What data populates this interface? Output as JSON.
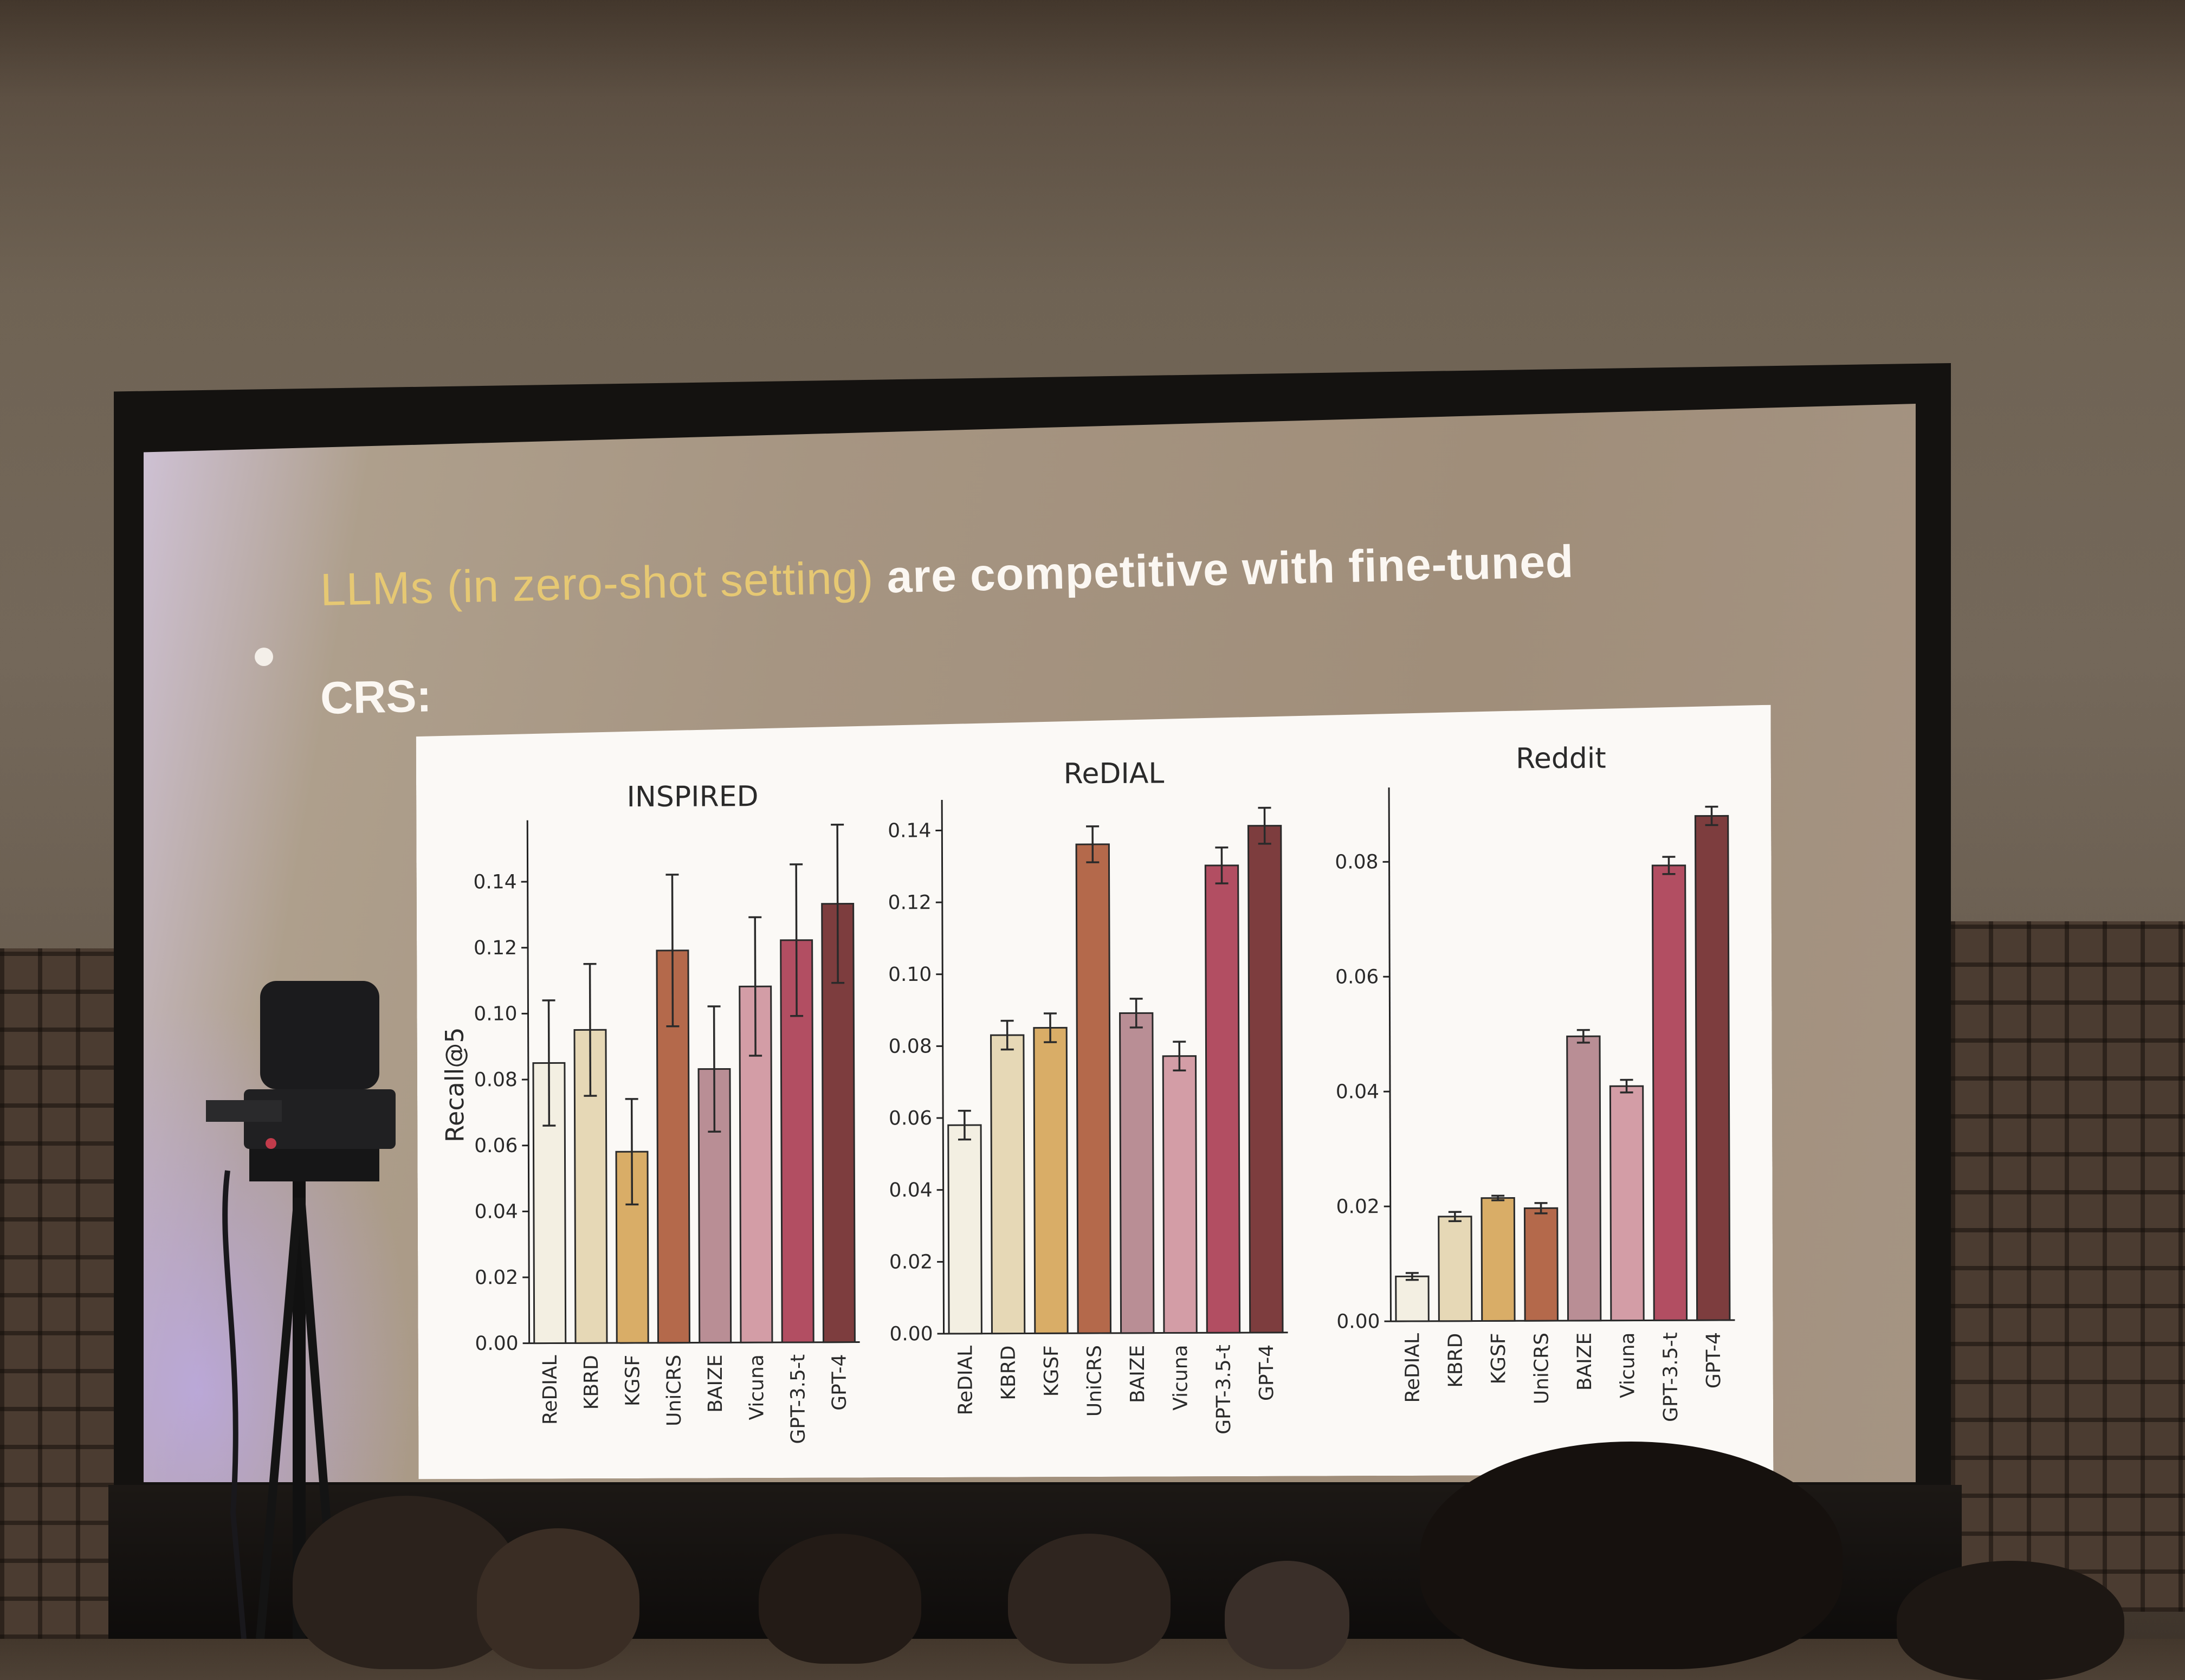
{
  "slide": {
    "bullet_highlight": "LLMs (in zero-shot setting)",
    "bullet_rest": " are competitive with fine-tuned",
    "bullet_line2": "CRS:"
  },
  "chart_data": [
    {
      "type": "bar",
      "title": "INSPIRED",
      "ylabel": "Recall@5",
      "categories": [
        "ReDIAL",
        "KBRD",
        "KGSF",
        "UniCRS",
        "BAIZE",
        "Vicuna",
        "GPT-3.5-t",
        "GPT-4"
      ],
      "values": [
        0.085,
        0.095,
        0.058,
        0.119,
        0.083,
        0.108,
        0.122,
        0.133
      ],
      "error": [
        0.019,
        0.02,
        0.016,
        0.023,
        0.019,
        0.021,
        0.023,
        0.024
      ],
      "ylim": [
        0,
        0.157
      ],
      "yticks": [
        "0.00",
        "0.02",
        "0.04",
        "0.06",
        "0.08",
        "0.10",
        "0.12",
        "0.14"
      ],
      "colors": [
        "#f3efe2",
        "#e6d8b6",
        "#d9ad67",
        "#b4694b",
        "#b98e95",
        "#d39da6",
        "#b24e62",
        "#7d3d3e"
      ]
    },
    {
      "type": "bar",
      "title": "ReDIAL",
      "ylabel": "",
      "categories": [
        "ReDIAL",
        "KBRD",
        "KGSF",
        "UniCRS",
        "BAIZE",
        "Vicuna",
        "GPT-3.5-t",
        "GPT-4"
      ],
      "values": [
        0.058,
        0.083,
        0.085,
        0.136,
        0.089,
        0.077,
        0.13,
        0.141
      ],
      "error": [
        0.004,
        0.004,
        0.004,
        0.005,
        0.004,
        0.004,
        0.005,
        0.005
      ],
      "ylim": [
        0,
        0.147
      ],
      "yticks": [
        "0.00",
        "0.02",
        "0.04",
        "0.06",
        "0.08",
        "0.10",
        "0.12",
        "0.14"
      ],
      "colors": [
        "#f3efe2",
        "#e6d8b6",
        "#d9ad67",
        "#b4694b",
        "#b98e95",
        "#d39da6",
        "#b24e62",
        "#7d3d3e"
      ]
    },
    {
      "type": "bar",
      "title": "Reddit",
      "ylabel": "",
      "categories": [
        "ReDIAL",
        "KBRD",
        "KGSF",
        "UniCRS",
        "BAIZE",
        "Vicuna",
        "GPT-3.5-t",
        "GPT-4"
      ],
      "values": [
        0.0078,
        0.0182,
        0.0214,
        0.0196,
        0.0495,
        0.0408,
        0.0792,
        0.0878
      ],
      "error": [
        0.0006,
        0.0008,
        0.0004,
        0.0009,
        0.0011,
        0.0011,
        0.0015,
        0.0016
      ],
      "ylim": [
        0,
        0.092
      ],
      "yticks": [
        "0.00",
        "0.02",
        "0.04",
        "0.06",
        "0.08"
      ],
      "colors": [
        "#f3efe2",
        "#e6d8b6",
        "#d9ad67",
        "#b4694b",
        "#b98e95",
        "#d39da6",
        "#b24e62",
        "#7d3d3e"
      ]
    }
  ]
}
